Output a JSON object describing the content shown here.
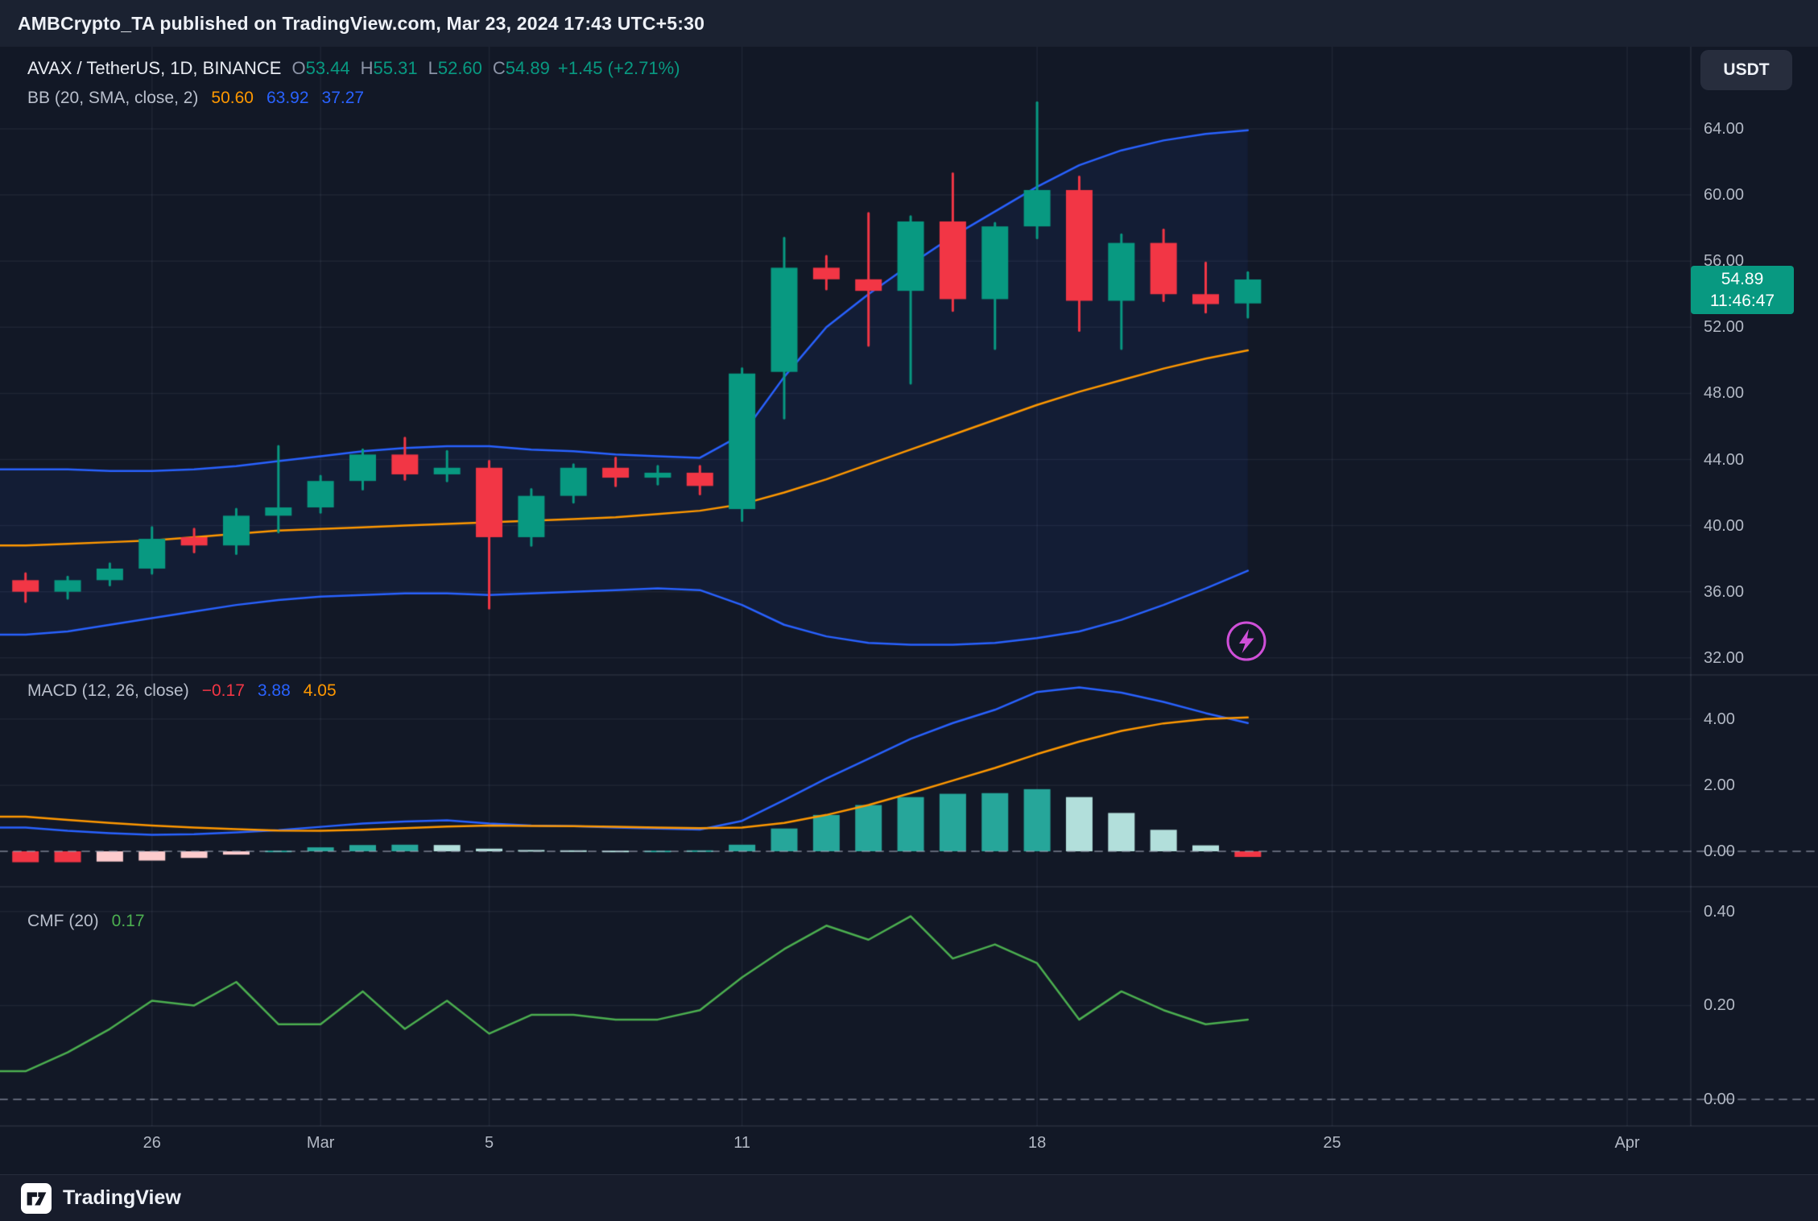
{
  "header": {
    "title": "AMBCrypto_TA published on TradingView.com, Mar 23, 2024 17:43 UTC+5:30"
  },
  "toolbar": {
    "currency_button": "USDT"
  },
  "symbol_legend": {
    "title": "AVAX / TetherUS, 1D, BINANCE",
    "o_label": "O",
    "o": "53.44",
    "h_label": "H",
    "h": "55.31",
    "l_label": "L",
    "l": "52.60",
    "c_label": "C",
    "c": "54.89",
    "change": "+1.45 (+2.71%)",
    "bb_label": "BB (20, SMA, close, 2)",
    "bb_basis": "50.60",
    "bb_upper": "63.92",
    "bb_lower": "37.27"
  },
  "macd_legend": {
    "label": "MACD (12, 26, close)",
    "hist": "−0.17",
    "macd": "3.88",
    "signal": "4.05"
  },
  "cmf_legend": {
    "label": "CMF (20)",
    "value": "0.17"
  },
  "price_badge": {
    "price": "54.89",
    "countdown": "11:46:47"
  },
  "footer": {
    "brand": "TradingView"
  },
  "colors": {
    "up": "#089981",
    "down": "#f23645",
    "bb_band": "#2962ff",
    "bb_basis": "#ff9800",
    "bb_fill": "rgba(41,98,255,0.07)",
    "macd_line": "#2962ff",
    "signal_line": "#ff9800",
    "hist_pos": "#26a69a",
    "hist_pos_light": "#b2dfdb",
    "hist_neg": "#f23645",
    "hist_neg_light": "#fccbcd",
    "cmf": "#4caf50",
    "badge_bg": "#089981",
    "accent_purple": "#cf4fd8",
    "grid": "rgba(199,210,234,0.07)"
  },
  "x_axis": {
    "labels": [
      {
        "text": "26",
        "slot": 3
      },
      {
        "text": "Mar",
        "slot": 7
      },
      {
        "text": "5",
        "slot": 11
      },
      {
        "text": "11",
        "slot": 17
      },
      {
        "text": "18",
        "slot": 24
      },
      {
        "text": "25",
        "slot": 31
      },
      {
        "text": "Apr",
        "slot": 38
      }
    ]
  },
  "chart_data": [
    {
      "type": "candlestick",
      "title": "AVAX / TetherUS, 1D, BINANCE",
      "timeframe": "1D",
      "last_price": 54.89,
      "ylim": [
        30.5,
        66.5
      ],
      "y_ticks": [
        {
          "v": 64,
          "label": "64.00"
        },
        {
          "v": 60,
          "label": "60.00"
        },
        {
          "v": 56,
          "label": "56.00"
        },
        {
          "v": 52,
          "label": "52.00"
        },
        {
          "v": 48,
          "label": "48.00"
        },
        {
          "v": 44,
          "label": "44.00"
        },
        {
          "v": 40,
          "label": "40.00"
        },
        {
          "v": 36,
          "label": "36.00"
        },
        {
          "v": 32,
          "label": "32.00"
        }
      ],
      "dates": [
        "Feb 23",
        "Feb 24",
        "Feb 25",
        "Feb 26",
        "Feb 27",
        "Feb 28",
        "Feb 29",
        "Mar 1",
        "Mar 2",
        "Mar 3",
        "Mar 4",
        "Mar 5",
        "Mar 6",
        "Mar 7",
        "Mar 8",
        "Mar 9",
        "Mar 10",
        "Mar 11",
        "Mar 12",
        "Mar 13",
        "Mar 14",
        "Mar 15",
        "Mar 16",
        "Mar 17",
        "Mar 18",
        "Mar 19",
        "Mar 20",
        "Mar 21",
        "Mar 22",
        "Mar 23"
      ],
      "ohlc": [
        [
          36.7,
          37.1,
          35.4,
          36.0
        ],
        [
          36.0,
          36.9,
          35.6,
          36.7
        ],
        [
          36.7,
          37.7,
          36.4,
          37.4
        ],
        [
          37.4,
          39.9,
          37.1,
          39.2
        ],
        [
          39.3,
          39.8,
          38.4,
          38.8
        ],
        [
          38.8,
          41.0,
          38.3,
          40.6
        ],
        [
          40.6,
          44.8,
          39.6,
          41.1
        ],
        [
          41.1,
          43.0,
          40.8,
          42.7
        ],
        [
          42.7,
          44.6,
          42.2,
          44.3
        ],
        [
          44.3,
          45.3,
          42.8,
          43.1
        ],
        [
          43.1,
          44.5,
          42.7,
          43.5
        ],
        [
          43.5,
          43.9,
          35.0,
          39.3
        ],
        [
          39.3,
          42.2,
          38.8,
          41.8
        ],
        [
          41.8,
          43.7,
          41.4,
          43.5
        ],
        [
          43.5,
          44.1,
          42.4,
          42.9
        ],
        [
          42.9,
          43.6,
          42.5,
          43.2
        ],
        [
          43.2,
          43.6,
          41.9,
          42.4
        ],
        [
          41.0,
          49.5,
          40.3,
          49.2
        ],
        [
          49.3,
          57.4,
          46.5,
          55.6
        ],
        [
          55.6,
          56.3,
          54.3,
          54.9
        ],
        [
          54.9,
          58.9,
          50.9,
          54.2
        ],
        [
          54.2,
          58.7,
          48.6,
          58.4
        ],
        [
          58.4,
          61.3,
          53.0,
          53.7
        ],
        [
          53.7,
          58.3,
          50.7,
          58.1
        ],
        [
          58.1,
          65.6,
          57.4,
          60.3
        ],
        [
          60.3,
          61.1,
          51.8,
          53.6
        ],
        [
          53.6,
          57.6,
          50.7,
          57.1
        ],
        [
          57.1,
          57.9,
          53.6,
          54.0
        ],
        [
          54.0,
          55.9,
          52.9,
          53.4
        ],
        [
          53.44,
          55.31,
          52.6,
          54.89
        ]
      ],
      "overlays": {
        "name": "BB (20, SMA, close, 2)",
        "bb_upper": [
          43.4,
          43.4,
          43.3,
          43.3,
          43.4,
          43.6,
          43.9,
          44.2,
          44.5,
          44.7,
          44.8,
          44.8,
          44.6,
          44.5,
          44.3,
          44.2,
          44.1,
          45.5,
          49.0,
          52.0,
          54.0,
          55.8,
          57.5,
          59.0,
          60.5,
          61.8,
          62.7,
          63.3,
          63.7,
          63.92
        ],
        "bb_basis": [
          38.8,
          38.9,
          39.0,
          39.1,
          39.3,
          39.5,
          39.7,
          39.8,
          39.9,
          40.0,
          40.1,
          40.2,
          40.3,
          40.4,
          40.5,
          40.7,
          40.9,
          41.3,
          42.0,
          42.8,
          43.7,
          44.6,
          45.5,
          46.4,
          47.3,
          48.1,
          48.8,
          49.5,
          50.1,
          50.6
        ],
        "bb_lower": [
          33.4,
          33.6,
          34.0,
          34.4,
          34.8,
          35.2,
          35.5,
          35.7,
          35.8,
          35.9,
          35.9,
          35.8,
          35.9,
          36.0,
          36.1,
          36.2,
          36.1,
          35.2,
          34.0,
          33.3,
          32.9,
          32.8,
          32.8,
          32.9,
          33.2,
          33.6,
          34.3,
          35.2,
          36.2,
          37.27
        ]
      }
    },
    {
      "type": "macd",
      "title": "MACD (12, 26, close)",
      "y_ticks": [
        {
          "v": 4,
          "label": "4.00"
        },
        {
          "v": 2,
          "label": "2.00"
        },
        {
          "v": 0,
          "label": "0.00"
        }
      ],
      "macd_line": [
        0.72,
        0.62,
        0.55,
        0.5,
        0.52,
        0.57,
        0.64,
        0.74,
        0.84,
        0.9,
        0.94,
        0.84,
        0.78,
        0.76,
        0.72,
        0.69,
        0.66,
        0.92,
        1.55,
        2.2,
        2.8,
        3.4,
        3.88,
        4.28,
        4.82,
        4.96,
        4.8,
        4.52,
        4.18,
        3.88
      ],
      "signal_line": [
        1.05,
        0.95,
        0.86,
        0.78,
        0.72,
        0.67,
        0.63,
        0.62,
        0.65,
        0.7,
        0.75,
        0.78,
        0.77,
        0.76,
        0.74,
        0.72,
        0.7,
        0.72,
        0.86,
        1.1,
        1.4,
        1.76,
        2.14,
        2.52,
        2.94,
        3.32,
        3.64,
        3.87,
        4.0,
        4.05
      ],
      "histogram": [
        -0.33,
        -0.33,
        -0.31,
        -0.28,
        -0.2,
        -0.1,
        0.02,
        0.12,
        0.19,
        0.2,
        0.19,
        0.08,
        0.04,
        0.03,
        0.02,
        0.02,
        0.03,
        0.2,
        0.69,
        1.1,
        1.4,
        1.64,
        1.74,
        1.76,
        1.88,
        1.64,
        1.16,
        0.65,
        0.18,
        -0.17
      ],
      "last_values": {
        "hist": -0.17,
        "macd": 3.88,
        "signal": 4.05
      }
    },
    {
      "type": "line",
      "title": "CMF (20)",
      "y_ticks": [
        {
          "v": 0.4,
          "label": "0.40"
        },
        {
          "v": 0.2,
          "label": "0.20"
        },
        {
          "v": 0,
          "label": "0.00"
        }
      ],
      "values": [
        0.06,
        0.1,
        0.15,
        0.21,
        0.2,
        0.25,
        0.16,
        0.16,
        0.23,
        0.15,
        0.21,
        0.14,
        0.18,
        0.18,
        0.17,
        0.17,
        0.19,
        0.26,
        0.32,
        0.37,
        0.34,
        0.39,
        0.3,
        0.33,
        0.29,
        0.17,
        0.23,
        0.19,
        0.16,
        0.17
      ],
      "last_value": 0.17
    }
  ]
}
